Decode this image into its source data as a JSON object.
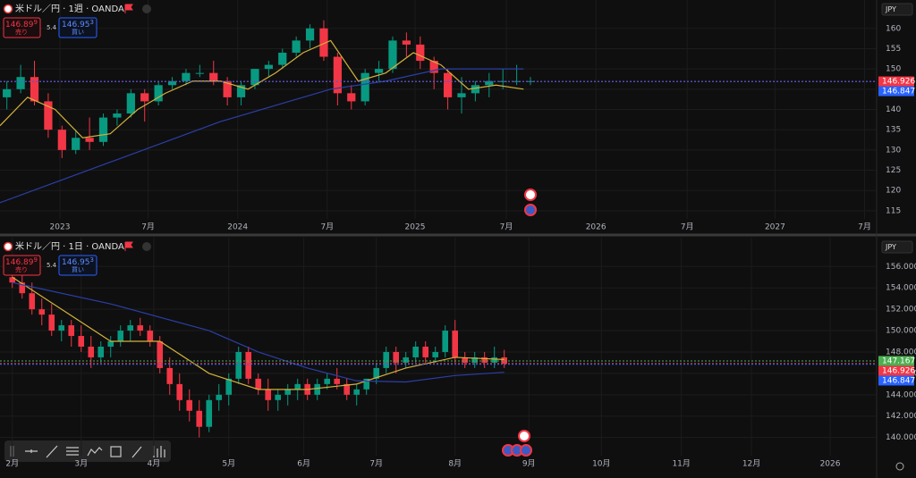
{
  "chart_data": [
    {
      "type": "candlestick",
      "title": "米ドル／円 · 1週 · OANDA",
      "currency": "JPY",
      "sell": {
        "price": "146.89",
        "pip": "9",
        "label": "売り"
      },
      "spread": "5.4",
      "buy": {
        "price": "146.95",
        "pip": "3",
        "label": "買い"
      },
      "up_color": "#089981",
      "down_color": "#f23645",
      "xlim": [
        0,
        254.5
      ],
      "ylim": [
        113,
        167
      ],
      "xticks": [
        {
          "value": 17.4,
          "label": "2023"
        },
        {
          "value": 43,
          "label": "7月"
        },
        {
          "value": 69,
          "label": "2024"
        },
        {
          "value": 95,
          "label": "7月"
        },
        {
          "value": 120.5,
          "label": "2025"
        },
        {
          "value": 147,
          "label": "7月"
        },
        {
          "value": 173,
          "label": "2026"
        },
        {
          "value": 199.5,
          "label": "7月"
        },
        {
          "value": 225,
          "label": "2027"
        },
        {
          "value": 251,
          "label": "7月"
        }
      ],
      "yticks": [
        115,
        120,
        125,
        130,
        135,
        140,
        145,
        150,
        155,
        160
      ],
      "x": [
        2,
        6,
        10,
        14,
        18,
        22,
        26,
        30,
        34,
        38,
        42,
        46,
        50,
        54,
        58,
        62,
        66,
        70,
        74,
        78,
        82,
        86,
        90,
        94,
        98,
        102,
        106,
        110,
        114,
        118,
        122,
        126,
        130,
        134,
        138,
        142,
        146,
        150,
        154
      ],
      "open": [
        143,
        145,
        148,
        142,
        135,
        130,
        133,
        132,
        138,
        139,
        144,
        142,
        146,
        147,
        149,
        149,
        147,
        143,
        146,
        150,
        151,
        154,
        157,
        160,
        153,
        144,
        142,
        149,
        150,
        157,
        156,
        152,
        149,
        143,
        144,
        146,
        147,
        147,
        147
      ],
      "high": [
        147,
        151,
        152,
        144,
        136,
        135,
        138,
        139,
        140,
        145,
        145,
        147,
        148,
        150,
        151,
        152,
        148,
        147,
        150,
        152,
        155,
        158,
        161,
        162,
        154,
        146,
        150,
        152,
        158,
        159,
        158,
        153,
        150,
        148,
        147,
        149,
        150,
        151,
        148
      ],
      "low": [
        140,
        144,
        141,
        133,
        128,
        129,
        130,
        131,
        136,
        138,
        137,
        141,
        145,
        146,
        148,
        146,
        141,
        141,
        145,
        148,
        150,
        153,
        155,
        152,
        141,
        140,
        141,
        147,
        149,
        153,
        150,
        145,
        140,
        139,
        142,
        143,
        145,
        146,
        146
      ],
      "close": [
        145,
        148,
        142,
        135,
        130,
        133,
        132,
        138,
        139,
        144,
        142,
        146,
        147,
        149,
        149,
        147,
        143,
        146,
        150,
        151,
        154,
        157,
        160,
        153,
        144,
        142,
        149,
        150,
        157,
        156,
        152,
        149,
        143,
        144,
        146,
        147,
        147,
        147,
        147
      ],
      "lines": [
        {
          "color": "#d4b13a",
          "x": [
            0,
            8,
            16,
            24,
            32,
            40,
            48,
            56,
            64,
            72,
            80,
            88,
            96,
            104,
            112,
            120,
            128,
            136,
            144,
            152
          ],
          "values": [
            136,
            143,
            140,
            133,
            134,
            140,
            144,
            147,
            147,
            145,
            149,
            154,
            157,
            147,
            149,
            154,
            151,
            145,
            146,
            145
          ]
        },
        {
          "color": "#2b3fa8",
          "x": [
            0,
            16,
            32,
            48,
            64,
            80,
            96,
            112,
            128,
            144,
            152
          ],
          "values": [
            117,
            122,
            127,
            132,
            137,
            141,
            145,
            147,
            150,
            150,
            150
          ]
        }
      ],
      "price_lines": [
        {
          "value": 146.926,
          "color": "#f23645"
        },
        {
          "value": 146.847,
          "color": "#2962ff"
        }
      ]
    },
    {
      "type": "candlestick",
      "title": "米ドル／円 · 1日 · OANDA",
      "currency": "JPY",
      "sell": {
        "price": "146.89",
        "pip": "9",
        "label": "売り"
      },
      "spread": "5.4",
      "buy": {
        "price": "146.95",
        "pip": "3",
        "label": "買い"
      },
      "up_color": "#089981",
      "down_color": "#f23645",
      "xlim": [
        -5,
        351.4
      ],
      "ylim": [
        138.3,
        158.7
      ],
      "xticks": [
        {
          "value": 0,
          "label": "2月"
        },
        {
          "value": 28,
          "label": "3月"
        },
        {
          "value": 57.5,
          "label": "4月"
        },
        {
          "value": 88,
          "label": "5月"
        },
        {
          "value": 118.5,
          "label": "6月"
        },
        {
          "value": 148,
          "label": "7月"
        },
        {
          "value": 180,
          "label": "8月"
        },
        {
          "value": 210,
          "label": "9月"
        },
        {
          "value": 239.5,
          "label": "10月"
        },
        {
          "value": 272,
          "label": "11月"
        },
        {
          "value": 300.5,
          "label": "12月"
        },
        {
          "value": 332.5,
          "label": "2026"
        }
      ],
      "yticks": [
        {
          "value": 140,
          "label": "140.000"
        },
        {
          "value": 142,
          "label": "142.000"
        },
        {
          "value": 144,
          "label": "144.000"
        },
        {
          "value": 146,
          "label": "146.000"
        },
        {
          "value": 148,
          "label": "148.000"
        },
        {
          "value": 150,
          "label": "150.000"
        },
        {
          "value": 152,
          "label": "152.000"
        },
        {
          "value": 154,
          "label": "154.000"
        },
        {
          "value": 156,
          "label": "156.000"
        }
      ],
      "x": [
        0,
        4,
        8,
        12,
        16,
        20,
        24,
        28,
        32,
        36,
        40,
        44,
        48,
        52,
        56,
        60,
        64,
        68,
        72,
        76,
        80,
        84,
        88,
        92,
        96,
        100,
        104,
        108,
        112,
        116,
        120,
        124,
        128,
        132,
        136,
        140,
        144,
        148,
        152,
        156,
        160,
        164,
        168,
        172,
        176,
        180,
        184,
        188,
        192,
        196,
        200
      ],
      "open": [
        155.0,
        154.5,
        153.5,
        152.0,
        151.5,
        150.0,
        150.5,
        149.5,
        148.5,
        147.5,
        148.5,
        149.0,
        150.0,
        150.5,
        150.0,
        149.0,
        146.5,
        145.0,
        143.5,
        142.5,
        141.0,
        143.5,
        144.0,
        145.5,
        148.0,
        145.5,
        144.5,
        143.5,
        144.0,
        144.5,
        145.0,
        144.0,
        145.0,
        145.5,
        145.0,
        144.0,
        144.5,
        145.5,
        146.5,
        148.0,
        147.0,
        147.5,
        148.5,
        147.5,
        148.0,
        150.0,
        147.5,
        147.0,
        147.5,
        147.0,
        147.5
      ],
      "high": [
        156.0,
        155.5,
        154.5,
        153.0,
        152.5,
        151.0,
        151.0,
        150.5,
        149.5,
        149.0,
        149.5,
        150.5,
        151.0,
        151.2,
        150.5,
        149.5,
        147.5,
        146.0,
        144.5,
        143.5,
        144.0,
        145.0,
        146.0,
        148.5,
        148.5,
        146.0,
        145.5,
        144.5,
        145.0,
        145.5,
        145.5,
        145.5,
        146.0,
        146.5,
        145.5,
        145.0,
        145.5,
        147.0,
        148.5,
        148.5,
        148.0,
        149.0,
        149.0,
        148.5,
        150.5,
        151.0,
        148.0,
        148.0,
        148.0,
        148.5,
        148.2
      ],
      "low": [
        154.0,
        153.0,
        151.5,
        150.5,
        149.5,
        149.0,
        148.5,
        148.0,
        146.5,
        147.0,
        147.5,
        148.5,
        149.0,
        149.5,
        148.5,
        146.0,
        144.0,
        142.5,
        141.5,
        140.0,
        140.5,
        142.5,
        143.0,
        145.0,
        145.0,
        144.0,
        142.5,
        142.5,
        143.0,
        143.5,
        143.5,
        143.5,
        144.5,
        144.5,
        143.5,
        143.0,
        144.0,
        145.0,
        146.0,
        146.0,
        146.5,
        147.0,
        147.0,
        147.0,
        147.5,
        147.0,
        146.5,
        146.5,
        146.5,
        146.5,
        146.5
      ],
      "close": [
        154.5,
        153.5,
        152.0,
        151.5,
        150.0,
        150.5,
        149.5,
        148.5,
        147.5,
        148.5,
        149.0,
        150.0,
        150.5,
        150.0,
        149.0,
        146.5,
        145.0,
        143.5,
        142.5,
        141.0,
        143.5,
        144.0,
        145.5,
        148.0,
        145.5,
        144.5,
        143.5,
        144.0,
        144.5,
        145.0,
        144.0,
        145.0,
        145.5,
        145.0,
        144.0,
        144.5,
        145.5,
        146.5,
        148.0,
        147.0,
        147.5,
        148.5,
        147.5,
        148.0,
        150.0,
        147.5,
        147.0,
        147.5,
        147.0,
        147.5,
        146.9
      ],
      "lines": [
        {
          "color": "#d4b13a",
          "x": [
            0,
            20,
            40,
            60,
            80,
            100,
            120,
            140,
            160,
            180,
            200
          ],
          "values": [
            155,
            152,
            149,
            149,
            146,
            144.5,
            144.5,
            145,
            146.5,
            147.5,
            147.3
          ]
        },
        {
          "color": "#2b3fa8",
          "x": [
            0,
            40,
            80,
            100,
            120,
            140,
            160,
            180,
            200
          ],
          "values": [
            154.5,
            152.5,
            150,
            148,
            146.5,
            145.3,
            145.2,
            145.8,
            146.1
          ]
        }
      ],
      "price_lines": [
        {
          "value": 147.167,
          "color": "#4caf50"
        },
        {
          "value": 146.926,
          "color": "#f23645"
        },
        {
          "value": 146.847,
          "color": "#2962ff"
        }
      ]
    }
  ]
}
